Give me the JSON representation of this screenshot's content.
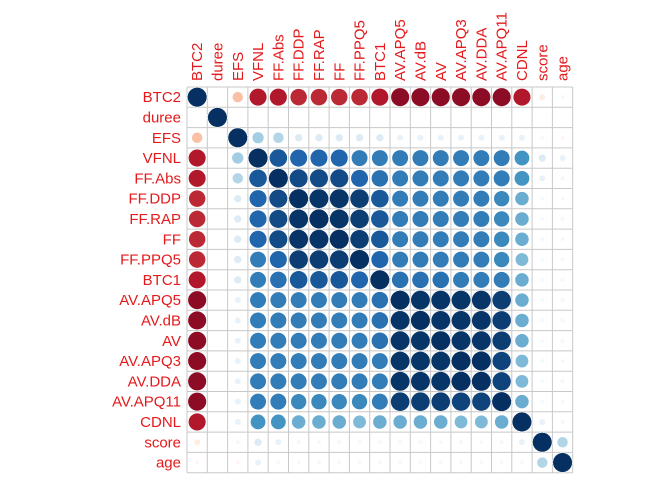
{
  "chart_data": {
    "type": "heatmap",
    "subtype": "correlation-circles",
    "title": "",
    "xlabel": "",
    "ylabel": "",
    "label_color": "#e41a1c",
    "grid": true,
    "legend": "none",
    "color_scale": {
      "negative": "#67001f",
      "mid": "#ffffff",
      "positive": "#053061"
    },
    "variables": [
      "BTC2",
      "duree",
      "EFS",
      "VFNL",
      "FF.Abs",
      "FF.DDP",
      "FF.RAP",
      "FF",
      "FF.PPQ5",
      "BTC1",
      "AV.APQ5",
      "AV.dB",
      "AV",
      "AV.APQ3",
      "AV.DDA",
      "AV.APQ11",
      "CDNL",
      "score",
      "age"
    ],
    "matrix": [
      [
        1,
        0,
        -0.3,
        -0.8,
        -0.8,
        -0.75,
        -0.75,
        -0.75,
        -0.75,
        -0.8,
        -0.9,
        -0.9,
        -0.9,
        -0.9,
        -0.9,
        -0.9,
        -0.8,
        -0.1,
        -0.05
      ],
      [
        0,
        1,
        0,
        0,
        0,
        0,
        0,
        0,
        0,
        0,
        0,
        0,
        0,
        0,
        0,
        0,
        0,
        0,
        0
      ],
      [
        -0.3,
        0,
        1,
        0.35,
        0.3,
        0.15,
        0.15,
        0.15,
        0.15,
        0.15,
        0.1,
        0.1,
        0.1,
        0.1,
        0.1,
        0.1,
        0.1,
        0.05,
        -0.05
      ],
      [
        -0.8,
        0,
        0.35,
        1,
        0.85,
        0.8,
        0.8,
        0.8,
        0.7,
        0.7,
        0.7,
        0.7,
        0.7,
        0.7,
        0.7,
        0.7,
        0.6,
        0.15,
        0.1
      ],
      [
        -0.8,
        0,
        0.3,
        0.85,
        1,
        0.9,
        0.9,
        0.9,
        0.8,
        0.75,
        0.7,
        0.7,
        0.7,
        0.7,
        0.7,
        0.7,
        0.6,
        0.1,
        0.05
      ],
      [
        -0.75,
        0,
        0.15,
        0.8,
        0.9,
        1,
        0.98,
        0.98,
        0.95,
        0.85,
        0.7,
        0.7,
        0.7,
        0.7,
        0.7,
        0.65,
        0.5,
        0.05,
        0.05
      ],
      [
        -0.75,
        0,
        0.15,
        0.8,
        0.9,
        0.98,
        1,
        0.98,
        0.95,
        0.85,
        0.7,
        0.7,
        0.7,
        0.7,
        0.7,
        0.65,
        0.5,
        0.05,
        0.05
      ],
      [
        -0.75,
        0,
        0.15,
        0.8,
        0.9,
        0.98,
        0.98,
        1,
        0.95,
        0.85,
        0.7,
        0.7,
        0.7,
        0.7,
        0.7,
        0.65,
        0.5,
        0.05,
        0.05
      ],
      [
        -0.75,
        0,
        0.15,
        0.7,
        0.8,
        0.95,
        0.95,
        0.95,
        1,
        0.8,
        0.7,
        0.7,
        0.7,
        0.7,
        0.7,
        0.65,
        0.45,
        0.05,
        0.05
      ],
      [
        -0.8,
        0,
        0.15,
        0.7,
        0.75,
        0.85,
        0.85,
        0.85,
        0.8,
        1,
        0.75,
        0.75,
        0.75,
        0.7,
        0.7,
        0.7,
        0.5,
        0.05,
        0.05
      ],
      [
        -0.9,
        0,
        0.1,
        0.7,
        0.7,
        0.7,
        0.7,
        0.7,
        0.7,
        0.75,
        1,
        0.98,
        0.98,
        0.98,
        0.98,
        0.95,
        0.5,
        0.05,
        0.05
      ],
      [
        -0.9,
        0,
        0.1,
        0.7,
        0.7,
        0.7,
        0.7,
        0.7,
        0.7,
        0.75,
        0.98,
        1,
        0.98,
        0.98,
        0.98,
        0.95,
        0.5,
        0.05,
        0.05
      ],
      [
        -0.9,
        0,
        0.1,
        0.7,
        0.7,
        0.7,
        0.7,
        0.7,
        0.7,
        0.75,
        0.98,
        0.98,
        1,
        0.98,
        0.98,
        0.95,
        0.5,
        0.05,
        0.05
      ],
      [
        -0.9,
        0,
        0.1,
        0.7,
        0.7,
        0.7,
        0.7,
        0.7,
        0.7,
        0.7,
        0.98,
        0.98,
        0.98,
        1,
        1,
        0.93,
        0.45,
        0.05,
        0.05
      ],
      [
        -0.9,
        0,
        0.1,
        0.7,
        0.7,
        0.7,
        0.7,
        0.7,
        0.7,
        0.7,
        0.98,
        0.98,
        0.98,
        1,
        1,
        0.93,
        0.45,
        0.05,
        0.05
      ],
      [
        -0.9,
        0,
        0.1,
        0.7,
        0.7,
        0.65,
        0.65,
        0.65,
        0.65,
        0.7,
        0.95,
        0.95,
        0.95,
        0.93,
        0.93,
        1,
        0.5,
        0.05,
        0.05
      ],
      [
        -0.8,
        0,
        0.1,
        0.6,
        0.6,
        0.5,
        0.5,
        0.5,
        0.45,
        0.5,
        0.5,
        0.5,
        0.5,
        0.45,
        0.45,
        0.5,
        1,
        0.1,
        0.05
      ],
      [
        -0.1,
        0,
        0.05,
        0.15,
        0.1,
        0.05,
        0.05,
        0.05,
        0.05,
        0.05,
        0.05,
        0.05,
        0.05,
        0.05,
        0.05,
        0.05,
        0.1,
        1,
        0.3
      ],
      [
        -0.05,
        0,
        -0.05,
        0.1,
        0.05,
        0.05,
        0.05,
        0.05,
        0.05,
        0.05,
        0.05,
        0.05,
        0.05,
        0.05,
        0.05,
        0.05,
        0.05,
        0.3,
        1
      ]
    ]
  }
}
